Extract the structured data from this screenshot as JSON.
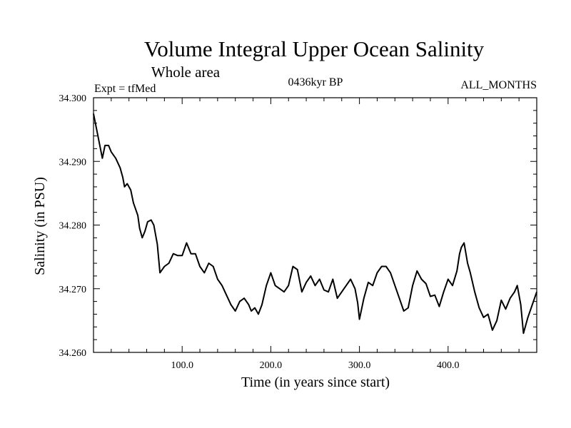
{
  "chart_data": {
    "type": "line",
    "title": "Volume Integral Upper Ocean Salinity",
    "subtitle": "Whole area",
    "experiment_label": "Expt = tfMed",
    "period_label": "0436kyr BP",
    "months_label": "ALL_MONTHS",
    "xlabel": "Time (in years since start)",
    "ylabel": "Salinity (in PSU)",
    "xlim": [
      0,
      500
    ],
    "ylim": [
      34.26,
      34.3
    ],
    "x_ticks": [
      {
        "value": 100,
        "label": "100.0"
      },
      {
        "value": 200,
        "label": "200.0"
      },
      {
        "value": 300,
        "label": "300.0"
      },
      {
        "value": 400,
        "label": "400.0"
      }
    ],
    "y_ticks": [
      {
        "value": 34.26,
        "label": "34.260"
      },
      {
        "value": 34.27,
        "label": "34.270"
      },
      {
        "value": 34.28,
        "label": "34.280"
      },
      {
        "value": 34.29,
        "label": "34.290"
      },
      {
        "value": 34.3,
        "label": "34.300"
      }
    ],
    "grid": false,
    "line_color": "#000000",
    "series": [
      {
        "x": [
          0,
          5,
          10,
          13,
          17,
          20,
          25,
          30,
          33,
          35,
          38,
          42,
          45,
          50,
          52,
          55,
          58,
          61,
          65,
          68,
          72,
          75,
          80,
          85,
          90,
          95,
          100,
          105,
          110,
          115,
          120,
          125,
          130,
          135,
          140,
          145,
          150,
          155,
          160,
          165,
          170,
          175,
          178,
          182,
          186,
          190,
          195,
          200,
          205,
          210,
          215,
          220,
          225,
          230,
          235,
          240,
          245,
          250,
          255,
          260,
          265,
          270,
          275,
          280,
          285,
          290,
          295,
          298,
          300,
          305,
          310,
          315,
          320,
          325,
          330,
          335,
          340,
          345,
          350,
          355,
          360,
          365,
          370,
          375,
          380,
          385,
          390,
          395,
          400,
          405,
          410,
          413,
          415,
          418,
          422,
          425,
          430,
          435,
          440,
          445,
          450,
          455,
          460,
          465,
          470,
          475,
          478,
          482,
          485,
          490,
          495,
          500
        ],
        "values": [
          34.2975,
          34.294,
          34.2905,
          34.2925,
          34.2925,
          34.2915,
          34.2905,
          34.289,
          34.2875,
          34.286,
          34.2865,
          34.2855,
          34.2835,
          34.2815,
          34.2795,
          34.278,
          34.279,
          34.2805,
          34.2808,
          34.28,
          34.277,
          34.2725,
          34.2735,
          34.274,
          34.2755,
          34.2752,
          34.2752,
          34.2772,
          34.2755,
          34.2755,
          34.2735,
          34.2725,
          34.274,
          34.2735,
          34.2715,
          34.2705,
          34.269,
          34.2675,
          34.2665,
          34.268,
          34.2685,
          34.2675,
          34.2665,
          34.267,
          34.266,
          34.2675,
          34.2705,
          34.2725,
          34.2705,
          34.27,
          34.2695,
          34.2705,
          34.2735,
          34.273,
          34.2695,
          34.271,
          34.272,
          34.2705,
          34.2715,
          34.2698,
          34.2695,
          34.2715,
          34.2685,
          34.2695,
          34.2705,
          34.2715,
          34.27,
          34.2678,
          34.2652,
          34.2685,
          34.271,
          34.2705,
          34.2725,
          34.2735,
          34.2735,
          34.2725,
          34.2705,
          34.2685,
          34.2665,
          34.267,
          34.2705,
          34.2728,
          34.2715,
          34.2708,
          34.2688,
          34.269,
          34.2672,
          34.2695,
          34.2715,
          34.2705,
          34.2728,
          34.2755,
          34.2765,
          34.2772,
          34.274,
          34.2725,
          34.2695,
          34.267,
          34.2655,
          34.266,
          34.2635,
          34.265,
          34.2682,
          34.2668,
          34.2685,
          34.2695,
          34.2705,
          34.2675,
          34.263,
          34.2655,
          34.2675,
          34.2695
        ]
      }
    ]
  }
}
